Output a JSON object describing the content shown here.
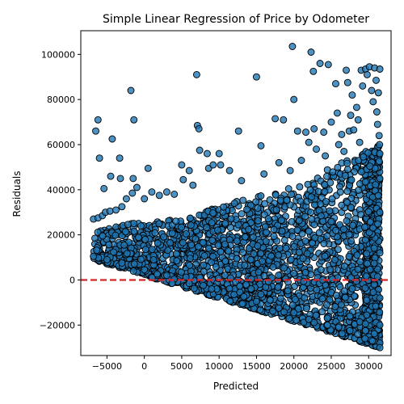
{
  "chart_data": {
    "type": "scatter",
    "title": "Simple Linear Regression of Price by Odometer",
    "xlabel": "Predicted",
    "ylabel": "Residuals",
    "xlim": [
      -8500,
      33000
    ],
    "ylim": [
      -33500,
      110500
    ],
    "xticks": [
      -5000,
      0,
      5000,
      10000,
      15000,
      20000,
      25000,
      30000
    ],
    "yticks": [
      -20000,
      0,
      20000,
      40000,
      60000,
      80000,
      100000
    ],
    "xtick_labels": [
      "−5000",
      "0",
      "5000",
      "10000",
      "15000",
      "20000",
      "25000",
      "30000"
    ],
    "ytick_labels": [
      "−20000",
      "0",
      "20000",
      "40000",
      "60000",
      "80000",
      "100000"
    ],
    "grid": false,
    "reference_line": {
      "y": 0,
      "style": "dashed",
      "color": "#d62728"
    },
    "colors": {
      "marker_fill": "#1f77b4",
      "marker_edge": "#000000",
      "reference_line": "#d62728"
    },
    "series": [
      {
        "name": "residuals",
        "points": [
          [
            -6500,
            66000
          ],
          [
            -6200,
            71000
          ],
          [
            -6000,
            54000
          ],
          [
            -4300,
            62500
          ],
          [
            -5400,
            40500
          ],
          [
            -4500,
            46000
          ],
          [
            -3300,
            54000
          ],
          [
            -3200,
            45000
          ],
          [
            -1800,
            84000
          ],
          [
            -1400,
            71000
          ],
          [
            -1500,
            45000
          ],
          [
            500,
            49500
          ],
          [
            -6800,
            27000
          ],
          [
            -6200,
            27500
          ],
          [
            -5600,
            28500
          ],
          [
            -5200,
            30000
          ],
          [
            -4600,
            30500
          ],
          [
            -3800,
            31000
          ],
          [
            -3000,
            32500
          ],
          [
            -2400,
            36000
          ],
          [
            -1600,
            38500
          ],
          [
            -1000,
            41000
          ],
          [
            0,
            36000
          ],
          [
            1000,
            39000
          ],
          [
            2000,
            37500
          ],
          [
            3000,
            39000
          ],
          [
            4000,
            38000
          ],
          [
            5000,
            51000
          ],
          [
            5200,
            44500
          ],
          [
            6000,
            48500
          ],
          [
            6500,
            42000
          ],
          [
            7000,
            91000
          ],
          [
            7100,
            68500
          ],
          [
            7300,
            67000
          ],
          [
            7400,
            57500
          ],
          [
            8400,
            56000
          ],
          [
            8600,
            49500
          ],
          [
            9200,
            51000
          ],
          [
            10000,
            56000
          ],
          [
            10200,
            51000
          ],
          [
            11400,
            48500
          ],
          [
            12600,
            66000
          ],
          [
            13000,
            44000
          ],
          [
            15000,
            90000
          ],
          [
            15600,
            59500
          ],
          [
            16000,
            47000
          ],
          [
            17500,
            71500
          ],
          [
            18000,
            52000
          ],
          [
            18600,
            71000
          ],
          [
            19500,
            48500
          ],
          [
            19800,
            103500
          ],
          [
            20000,
            80000
          ],
          [
            20500,
            66000
          ],
          [
            21000,
            53000
          ],
          [
            21600,
            65500
          ],
          [
            22000,
            61000
          ],
          [
            22300,
            101000
          ],
          [
            22600,
            92500
          ],
          [
            22700,
            67000
          ],
          [
            23000,
            58000
          ],
          [
            23500,
            96000
          ],
          [
            24000,
            65500
          ],
          [
            24200,
            55000
          ],
          [
            24600,
            95500
          ],
          [
            25000,
            70000
          ],
          [
            25600,
            87000
          ],
          [
            25800,
            74000
          ],
          [
            26000,
            60000
          ],
          [
            26400,
            64500
          ],
          [
            26700,
            57000
          ],
          [
            27000,
            93000
          ],
          [
            27200,
            87500
          ],
          [
            27400,
            66000
          ],
          [
            27600,
            73000
          ],
          [
            27800,
            82000
          ],
          [
            28000,
            66500
          ],
          [
            28400,
            76500
          ],
          [
            28600,
            71000
          ],
          [
            28800,
            61000
          ],
          [
            29000,
            93000
          ],
          [
            29200,
            86000
          ],
          [
            29600,
            93500
          ],
          [
            29800,
            91000
          ],
          [
            30100,
            94500
          ],
          [
            30400,
            84000
          ],
          [
            30600,
            79000
          ],
          [
            30800,
            94000
          ],
          [
            31000,
            88500
          ],
          [
            31100,
            74500
          ],
          [
            31200,
            69000
          ],
          [
            31300,
            83000
          ],
          [
            31400,
            64000
          ],
          [
            31450,
            60000
          ],
          [
            31500,
            93500
          ],
          [
            31500,
            56000
          ],
          [
            31500,
            45000
          ],
          [
            31500,
            30000
          ],
          [
            31500,
            12000
          ],
          [
            31500,
            -8000
          ],
          [
            31500,
            -20000
          ],
          [
            31500,
            -28000
          ],
          [
            31500,
            -30000
          ],
          [
            30500,
            -27000
          ],
          [
            29500,
            -26000
          ],
          [
            28500,
            -24000
          ],
          [
            27500,
            -22500
          ],
          [
            26000,
            -21000
          ],
          [
            24500,
            -20000
          ],
          [
            22000,
            -17500
          ],
          [
            20000,
            -14500
          ],
          [
            18000,
            -12500
          ],
          [
            15000,
            -9500
          ],
          [
            12000,
            -6500
          ],
          [
            9000,
            -4000
          ],
          [
            6000,
            -1500
          ],
          [
            3000,
            2000
          ],
          [
            0,
            4500
          ],
          [
            -3000,
            7500
          ],
          [
            -5000,
            9000
          ],
          [
            -6800,
            10500
          ]
        ],
        "dense_region": {
          "description": "solid mass of overlapping points",
          "x_range": [
            -6800,
            31500
          ],
          "upper_y_at_x": [
            [
              -6800,
              21000
            ],
            [
              -2000,
              25000
            ],
            [
              5000,
              27000
            ],
            [
              10000,
              33000
            ],
            [
              15000,
              37000
            ],
            [
              20000,
              41000
            ],
            [
              25000,
              50000
            ],
            [
              31500,
              60000
            ]
          ],
          "lower_bound": {
            "x_start": -6800,
            "y_start": 9000,
            "x_end": 31500,
            "y_end": -30000
          }
        }
      }
    ]
  }
}
